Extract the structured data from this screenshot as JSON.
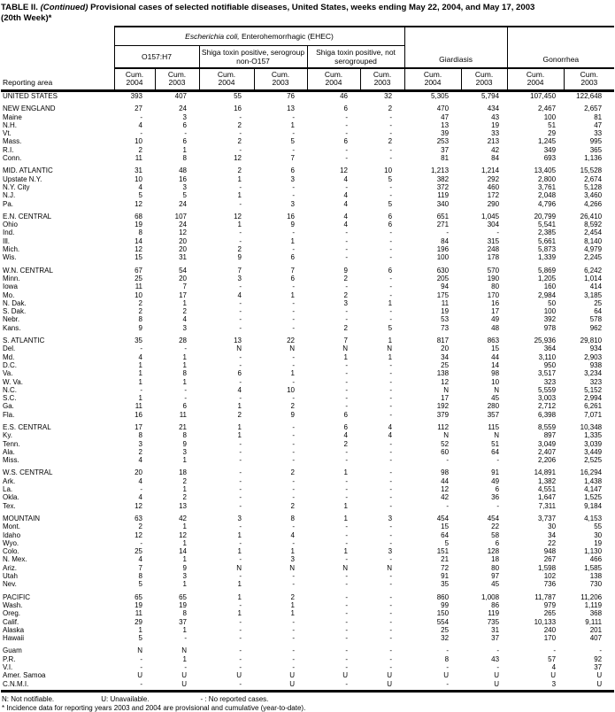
{
  "title": {
    "table_label": "TABLE II.",
    "continued": "(Continued)",
    "rest": " Provisional cases of selected notifiable diseases, United States, weeks ending May 22, 2004, and May 17, 2003",
    "line2": "(20th Week)*"
  },
  "header": {
    "reporting_area": "Reporting area",
    "ehec_italic": "Escherichia coli,",
    "ehec_rest": " Enterohemorrhagic (EHEC)",
    "subgroups": [
      "O157:H7",
      "Shiga toxin positive, serogroup non-O157",
      "Shiga toxin positive, not serogrouped"
    ],
    "giardiasis": "Giardiasis",
    "gonorrhea": "Gonorrhea",
    "cum_word": "Cum.",
    "years": [
      "2004",
      "2003"
    ]
  },
  "sections": [
    {
      "rows": [
        {
          "area": "UNITED STATES",
          "values": [
            "393",
            "407",
            "55",
            "76",
            "46",
            "32",
            "5,305",
            "5,794",
            "107,450",
            "122,648"
          ]
        }
      ]
    },
    {
      "rows": [
        {
          "area": "NEW ENGLAND",
          "values": [
            "27",
            "24",
            "16",
            "13",
            "6",
            "2",
            "470",
            "434",
            "2,467",
            "2,657"
          ]
        },
        {
          "area": "Maine",
          "values": [
            "-",
            "3",
            "-",
            "-",
            "-",
            "-",
            "47",
            "43",
            "100",
            "81"
          ]
        },
        {
          "area": "N.H.",
          "values": [
            "4",
            "6",
            "2",
            "1",
            "-",
            "-",
            "13",
            "19",
            "51",
            "47"
          ]
        },
        {
          "area": "Vt.",
          "values": [
            "-",
            "-",
            "-",
            "-",
            "-",
            "-",
            "39",
            "33",
            "29",
            "33"
          ]
        },
        {
          "area": "Mass.",
          "values": [
            "10",
            "6",
            "2",
            "5",
            "6",
            "2",
            "253",
            "213",
            "1,245",
            "995"
          ]
        },
        {
          "area": "R.I.",
          "values": [
            "2",
            "1",
            "-",
            "-",
            "-",
            "-",
            "37",
            "42",
            "349",
            "365"
          ]
        },
        {
          "area": "Conn.",
          "values": [
            "11",
            "8",
            "12",
            "7",
            "-",
            "-",
            "81",
            "84",
            "693",
            "1,136"
          ]
        }
      ]
    },
    {
      "rows": [
        {
          "area": "MID. ATLANTIC",
          "values": [
            "31",
            "48",
            "2",
            "6",
            "12",
            "10",
            "1,213",
            "1,214",
            "13,405",
            "15,528"
          ]
        },
        {
          "area": "Upstate N.Y.",
          "values": [
            "10",
            "16",
            "1",
            "3",
            "4",
            "5",
            "382",
            "292",
            "2,800",
            "2,674"
          ]
        },
        {
          "area": "N.Y. City",
          "values": [
            "4",
            "3",
            "-",
            "-",
            "-",
            "-",
            "372",
            "460",
            "3,761",
            "5,128"
          ]
        },
        {
          "area": "N.J.",
          "values": [
            "5",
            "5",
            "1",
            "-",
            "4",
            "-",
            "119",
            "172",
            "2,048",
            "3,460"
          ]
        },
        {
          "area": "Pa.",
          "values": [
            "12",
            "24",
            "-",
            "3",
            "4",
            "5",
            "340",
            "290",
            "4,796",
            "4,266"
          ]
        }
      ]
    },
    {
      "rows": [
        {
          "area": "E.N. CENTRAL",
          "values": [
            "68",
            "107",
            "12",
            "16",
            "4",
            "6",
            "651",
            "1,045",
            "20,799",
            "26,410"
          ]
        },
        {
          "area": "Ohio",
          "values": [
            "19",
            "24",
            "1",
            "9",
            "4",
            "6",
            "271",
            "304",
            "5,541",
            "8,592"
          ]
        },
        {
          "area": "Ind.",
          "values": [
            "8",
            "12",
            "-",
            "-",
            "-",
            "-",
            "-",
            "-",
            "2,385",
            "2,454"
          ]
        },
        {
          "area": "Ill.",
          "values": [
            "14",
            "20",
            "-",
            "1",
            "-",
            "-",
            "84",
            "315",
            "5,661",
            "8,140"
          ]
        },
        {
          "area": "Mich.",
          "values": [
            "12",
            "20",
            "2",
            "-",
            "-",
            "-",
            "196",
            "248",
            "5,873",
            "4,979"
          ]
        },
        {
          "area": "Wis.",
          "values": [
            "15",
            "31",
            "9",
            "6",
            "-",
            "-",
            "100",
            "178",
            "1,339",
            "2,245"
          ]
        }
      ]
    },
    {
      "rows": [
        {
          "area": "W.N. CENTRAL",
          "values": [
            "67",
            "54",
            "7",
            "7",
            "9",
            "6",
            "630",
            "570",
            "5,869",
            "6,242"
          ]
        },
        {
          "area": "Minn.",
          "values": [
            "25",
            "20",
            "3",
            "6",
            "2",
            "-",
            "205",
            "190",
            "1,205",
            "1,014"
          ]
        },
        {
          "area": "Iowa",
          "values": [
            "11",
            "7",
            "-",
            "-",
            "-",
            "-",
            "94",
            "80",
            "160",
            "414"
          ]
        },
        {
          "area": "Mo.",
          "values": [
            "10",
            "17",
            "4",
            "1",
            "2",
            "-",
            "175",
            "170",
            "2,984",
            "3,185"
          ]
        },
        {
          "area": "N. Dak.",
          "values": [
            "2",
            "1",
            "-",
            "-",
            "3",
            "1",
            "11",
            "16",
            "50",
            "25"
          ]
        },
        {
          "area": "S. Dak.",
          "values": [
            "2",
            "2",
            "-",
            "-",
            "-",
            "-",
            "19",
            "17",
            "100",
            "64"
          ]
        },
        {
          "area": "Nebr.",
          "values": [
            "8",
            "4",
            "-",
            "-",
            "-",
            "-",
            "53",
            "49",
            "392",
            "578"
          ]
        },
        {
          "area": "Kans.",
          "values": [
            "9",
            "3",
            "-",
            "-",
            "2",
            "5",
            "73",
            "48",
            "978",
            "962"
          ]
        }
      ]
    },
    {
      "rows": [
        {
          "area": "S. ATLANTIC",
          "values": [
            "35",
            "28",
            "13",
            "22",
            "7",
            "1",
            "817",
            "863",
            "25,936",
            "29,810"
          ]
        },
        {
          "area": "Del.",
          "values": [
            "-",
            "-",
            "N",
            "N",
            "N",
            "N",
            "20",
            "15",
            "364",
            "934"
          ]
        },
        {
          "area": "Md.",
          "values": [
            "4",
            "1",
            "-",
            "-",
            "1",
            "1",
            "34",
            "44",
            "3,110",
            "2,903"
          ]
        },
        {
          "area": "D.C.",
          "values": [
            "1",
            "1",
            "-",
            "-",
            "-",
            "-",
            "25",
            "14",
            "950",
            "938"
          ]
        },
        {
          "area": "Va.",
          "values": [
            "1",
            "8",
            "6",
            "1",
            "-",
            "-",
            "138",
            "98",
            "3,517",
            "3,234"
          ]
        },
        {
          "area": "W. Va.",
          "values": [
            "1",
            "1",
            "-",
            "-",
            "-",
            "-",
            "12",
            "10",
            "323",
            "323"
          ]
        },
        {
          "area": "N.C.",
          "values": [
            "-",
            "-",
            "4",
            "10",
            "-",
            "-",
            "N",
            "N",
            "5,559",
            "5,152"
          ]
        },
        {
          "area": "S.C.",
          "values": [
            "1",
            "-",
            "-",
            "-",
            "-",
            "-",
            "17",
            "45",
            "3,003",
            "2,994"
          ]
        },
        {
          "area": "Ga.",
          "values": [
            "11",
            "6",
            "1",
            "2",
            "-",
            "-",
            "192",
            "280",
            "2,712",
            "6,261"
          ]
        },
        {
          "area": "Fla.",
          "values": [
            "16",
            "11",
            "2",
            "9",
            "6",
            "-",
            "379",
            "357",
            "6,398",
            "7,071"
          ]
        }
      ]
    },
    {
      "rows": [
        {
          "area": "E.S. CENTRAL",
          "values": [
            "17",
            "21",
            "1",
            "-",
            "6",
            "4",
            "112",
            "115",
            "8,559",
            "10,348"
          ]
        },
        {
          "area": "Ky.",
          "values": [
            "8",
            "8",
            "1",
            "-",
            "4",
            "4",
            "N",
            "N",
            "897",
            "1,335"
          ]
        },
        {
          "area": "Tenn.",
          "values": [
            "3",
            "9",
            "-",
            "-",
            "2",
            "-",
            "52",
            "51",
            "3,049",
            "3,039"
          ]
        },
        {
          "area": "Ala.",
          "values": [
            "2",
            "3",
            "-",
            "-",
            "-",
            "-",
            "60",
            "64",
            "2,407",
            "3,449"
          ]
        },
        {
          "area": "Miss.",
          "values": [
            "4",
            "1",
            "-",
            "-",
            "-",
            "-",
            "-",
            "-",
            "2,206",
            "2,525"
          ]
        }
      ]
    },
    {
      "rows": [
        {
          "area": "W.S. CENTRAL",
          "values": [
            "20",
            "18",
            "-",
            "2",
            "1",
            "-",
            "98",
            "91",
            "14,891",
            "16,294"
          ]
        },
        {
          "area": "Ark.",
          "values": [
            "4",
            "2",
            "-",
            "-",
            "-",
            "-",
            "44",
            "49",
            "1,382",
            "1,438"
          ]
        },
        {
          "area": "La.",
          "values": [
            "-",
            "1",
            "-",
            "-",
            "-",
            "-",
            "12",
            "6",
            "4,551",
            "4,147"
          ]
        },
        {
          "area": "Okla.",
          "values": [
            "4",
            "2",
            "-",
            "-",
            "-",
            "-",
            "42",
            "36",
            "1,647",
            "1,525"
          ]
        },
        {
          "area": "Tex.",
          "values": [
            "12",
            "13",
            "-",
            "2",
            "1",
            "-",
            "-",
            "-",
            "7,311",
            "9,184"
          ]
        }
      ]
    },
    {
      "rows": [
        {
          "area": "MOUNTAIN",
          "values": [
            "63",
            "42",
            "3",
            "8",
            "1",
            "3",
            "454",
            "454",
            "3,737",
            "4,153"
          ]
        },
        {
          "area": "Mont.",
          "values": [
            "2",
            "1",
            "-",
            "-",
            "-",
            "-",
            "15",
            "22",
            "30",
            "55"
          ]
        },
        {
          "area": "Idaho",
          "values": [
            "12",
            "12",
            "1",
            "4",
            "-",
            "-",
            "64",
            "58",
            "34",
            "30"
          ]
        },
        {
          "area": "Wyo.",
          "values": [
            "-",
            "1",
            "-",
            "-",
            "-",
            "-",
            "5",
            "6",
            "22",
            "19"
          ]
        },
        {
          "area": "Colo.",
          "values": [
            "25",
            "14",
            "1",
            "1",
            "1",
            "3",
            "151",
            "128",
            "948",
            "1,130"
          ]
        },
        {
          "area": "N. Mex.",
          "values": [
            "4",
            "1",
            "-",
            "3",
            "-",
            "-",
            "21",
            "18",
            "267",
            "466"
          ]
        },
        {
          "area": "Ariz.",
          "values": [
            "7",
            "9",
            "N",
            "N",
            "N",
            "N",
            "72",
            "80",
            "1,598",
            "1,585"
          ]
        },
        {
          "area": "Utah",
          "values": [
            "8",
            "3",
            "-",
            "-",
            "-",
            "-",
            "91",
            "97",
            "102",
            "138"
          ]
        },
        {
          "area": "Nev.",
          "values": [
            "5",
            "1",
            "1",
            "-",
            "-",
            "-",
            "35",
            "45",
            "736",
            "730"
          ]
        }
      ]
    },
    {
      "rows": [
        {
          "area": "PACIFIC",
          "values": [
            "65",
            "65",
            "1",
            "2",
            "-",
            "-",
            "860",
            "1,008",
            "11,787",
            "11,206"
          ]
        },
        {
          "area": "Wash.",
          "values": [
            "19",
            "19",
            "-",
            "1",
            "-",
            "-",
            "99",
            "86",
            "979",
            "1,119"
          ]
        },
        {
          "area": "Oreg.",
          "values": [
            "11",
            "8",
            "1",
            "1",
            "-",
            "-",
            "150",
            "119",
            "265",
            "368"
          ]
        },
        {
          "area": "Calif.",
          "values": [
            "29",
            "37",
            "-",
            "-",
            "-",
            "-",
            "554",
            "735",
            "10,133",
            "9,111"
          ]
        },
        {
          "area": "Alaska",
          "values": [
            "1",
            "1",
            "-",
            "-",
            "-",
            "-",
            "25",
            "31",
            "240",
            "201"
          ]
        },
        {
          "area": "Hawaii",
          "values": [
            "5",
            "-",
            "-",
            "-",
            "-",
            "-",
            "32",
            "37",
            "170",
            "407"
          ]
        }
      ]
    },
    {
      "rows": [
        {
          "area": "Guam",
          "values": [
            "N",
            "N",
            "-",
            "-",
            "-",
            "-",
            "-",
            "-",
            "-",
            "-"
          ]
        },
        {
          "area": "P.R.",
          "values": [
            "-",
            "1",
            "-",
            "-",
            "-",
            "-",
            "8",
            "43",
            "57",
            "92"
          ]
        },
        {
          "area": "V.I.",
          "values": [
            "-",
            "-",
            "-",
            "-",
            "-",
            "-",
            "-",
            "-",
            "4",
            "37"
          ]
        },
        {
          "area": "Amer. Samoa",
          "values": [
            "U",
            "U",
            "U",
            "U",
            "U",
            "U",
            "U",
            "U",
            "U",
            "U"
          ]
        },
        {
          "area": "C.N.M.I.",
          "values": [
            "-",
            "U",
            "-",
            "U",
            "-",
            "U",
            "-",
            "U",
            "3",
            "U"
          ]
        }
      ]
    }
  ],
  "footnotes": {
    "n": "N: Not notifiable.",
    "u": "U: Unavailable.",
    "dash": "- : No reported cases.",
    "asterisk": "* Incidence data for reporting years 2003 and 2004 are provisional and cumulative (year-to-date)."
  }
}
